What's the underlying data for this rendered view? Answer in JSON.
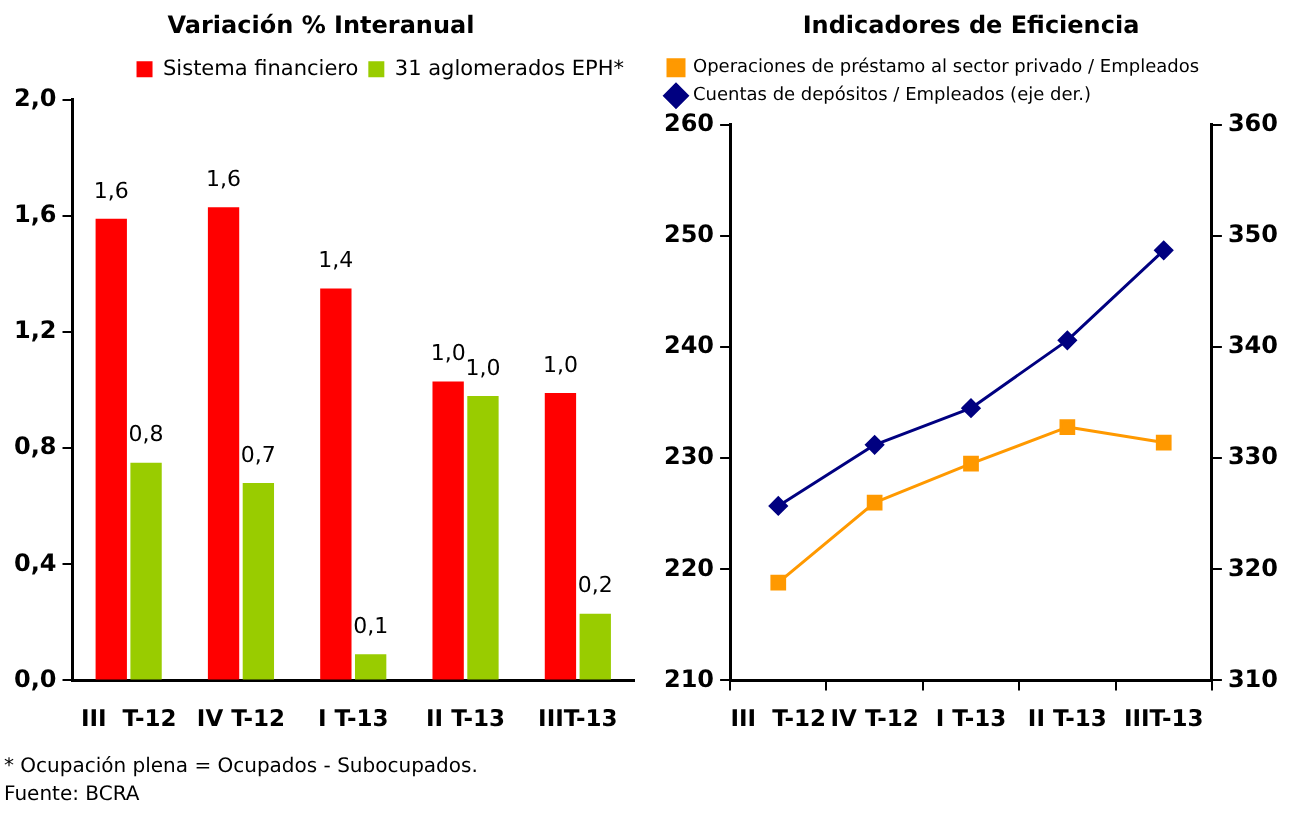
{
  "chart_data": [
    {
      "type": "bar",
      "title": "Variación % Interanual",
      "categories": [
        "III  T-12",
        "IV T-12",
        "I T-13",
        "II T-13",
        "IIIT-13"
      ],
      "series": [
        {
          "name": "Sistema financiero",
          "color": "#ff0000",
          "values": [
            1.59,
            1.63,
            1.35,
            1.03,
            0.99
          ],
          "value_labels": [
            "1,6",
            "1,6",
            "1,4",
            "1,0",
            "1,0"
          ]
        },
        {
          "name": "31 aglomerados EPH*",
          "color": "#99cc00",
          "values": [
            0.75,
            0.68,
            0.09,
            0.98,
            0.23
          ],
          "value_labels": [
            "0,8",
            "0,7",
            "0,1",
            "1,0",
            "0,2"
          ]
        }
      ],
      "ylim": [
        0,
        2
      ],
      "yticks": [
        {
          "value": 0,
          "label": "0,0"
        },
        {
          "value": 0.4,
          "label": "0,4"
        },
        {
          "value": 0.8,
          "label": "0,8"
        },
        {
          "value": 1.2,
          "label": "1,2"
        },
        {
          "value": 1.6,
          "label": "1,6"
        },
        {
          "value": 2,
          "label": "2,0"
        }
      ],
      "legend": "top right",
      "grid": false,
      "annotations": [
        "* Ocupación plena = Ocupados - Subocupados.",
        "Fuente: BCRA"
      ]
    },
    {
      "type": "line",
      "title": "Indicadores de Eficiencia",
      "categories": [
        "III  T-12",
        "IV T-12",
        "I T-13",
        "II T-13",
        "IIIT-13"
      ],
      "series": [
        {
          "name": "Operaciones de préstamo al sector privado / Empleados",
          "color": "#ff9900",
          "marker": "square",
          "values": [
            218.8,
            226.0,
            229.5,
            232.8,
            231.4
          ]
        },
        {
          "name": "Cuentas de depósitos / Empleados (eje der.)",
          "color": "#000080",
          "marker": "diamond",
          "axis": "y2",
          "values": [
            325.7,
            331.2,
            334.5,
            340.6,
            348.7
          ]
        }
      ],
      "ylim": [
        210,
        260
      ],
      "yticks": [
        210,
        220,
        230,
        240,
        250,
        260
      ],
      "y2lim": [
        310,
        360
      ],
      "y2ticks": [
        310,
        320,
        330,
        340,
        350,
        360
      ],
      "legend": "top left",
      "grid": false,
      "line_style": "solid"
    }
  ]
}
